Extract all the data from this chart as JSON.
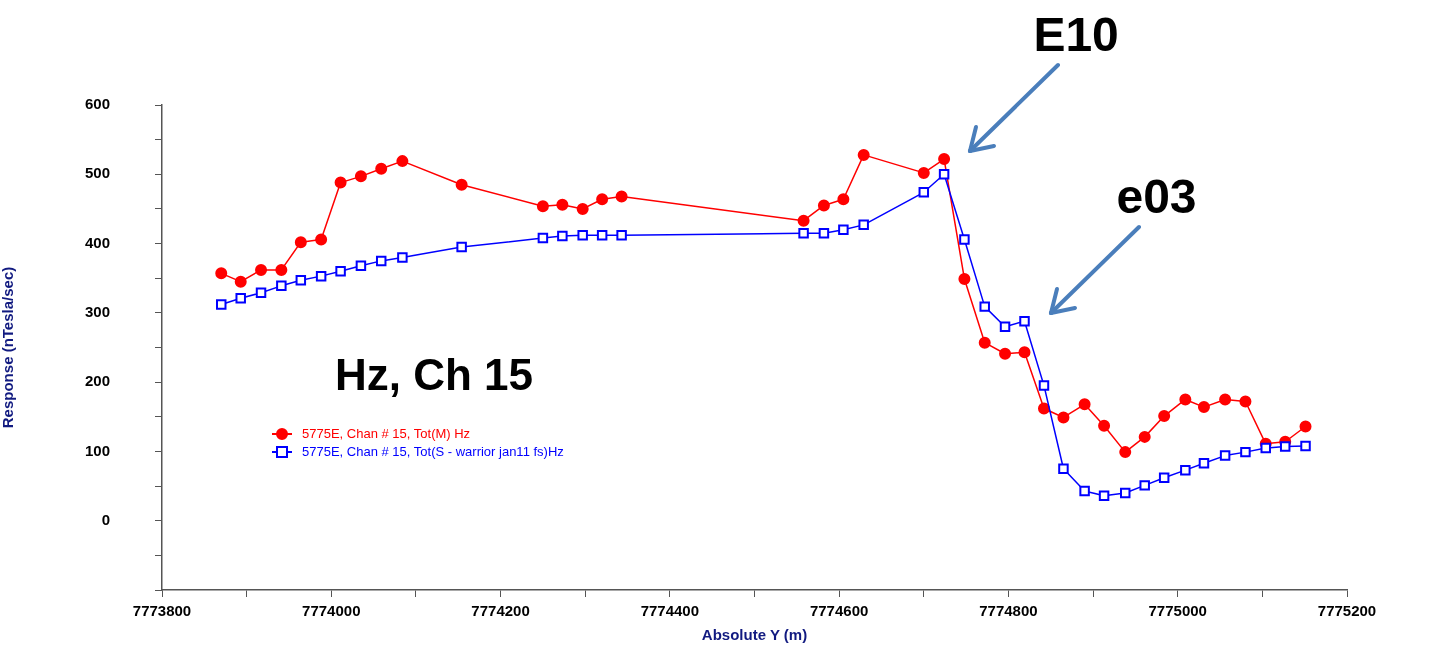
{
  "chart_data": {
    "type": "line",
    "xlabel": "Absolute Y (m)",
    "ylabel": "Response (nTesla/sec)",
    "x": [
      7773870,
      7773893,
      7773917,
      7773941,
      7773964,
      7773988,
      7774011,
      7774035,
      7774059,
      7774084,
      7774154,
      7774250,
      7774273,
      7774297,
      7774320,
      7774343,
      7774558,
      7774582,
      7774605,
      7774629,
      7774700,
      7774724,
      7774748,
      7774772,
      7774796,
      7774819,
      7774842,
      7774865,
      7774890,
      7774913,
      7774938,
      7774961,
      7774984,
      7775009,
      7775031,
      7775056,
      7775080,
      7775104,
      7775127,
      7775151
    ],
    "series": [
      {
        "name": "5775E, Chan # 15, Tot(M) Hz",
        "color": "#ff0000",
        "marker": "circle",
        "values": [
          357,
          345,
          362,
          362,
          402,
          406,
          488,
          497,
          508,
          519,
          485,
          454,
          456,
          450,
          464,
          468,
          433,
          455,
          464,
          528,
          502,
          522,
          349,
          257,
          241,
          243,
          162,
          149,
          168,
          137,
          99,
          121,
          151,
          175,
          164,
          175,
          172,
          111,
          114,
          136
        ]
      },
      {
        "name": "5775E, Chan # 15, Tot(S - warrior jan11 fs)Hz",
        "color": "#0000ff",
        "marker": "square",
        "values": [
          312,
          321,
          329,
          339,
          347,
          353,
          360,
          368,
          375,
          380,
          395,
          408,
          411,
          412,
          412,
          412,
          415,
          415,
          420,
          427,
          474,
          500,
          406,
          309,
          280,
          288,
          195,
          75,
          43,
          36,
          40,
          51,
          62,
          73,
          83,
          94,
          99,
          105,
          107,
          108
        ]
      }
    ],
    "xlim": [
      7773800,
      7775200
    ],
    "xticks": [
      7773800,
      {
        "value": 7773900,
        "label": null
      },
      7774000,
      {
        "value": 7774100,
        "label": null
      },
      7774200,
      {
        "value": 7774300,
        "label": null
      },
      7774400,
      {
        "value": 7774500,
        "label": null
      },
      7774600,
      {
        "value": 7774700,
        "label": null
      },
      7774800,
      {
        "value": 7774900,
        "label": null
      },
      7775000,
      {
        "value": 7775100,
        "label": null
      },
      7775200
    ],
    "ylim": [
      -100,
      600
    ],
    "yticks": [
      {
        "value": -100,
        "label": null
      },
      {
        "value": -50,
        "label": null
      },
      0,
      {
        "value": 50,
        "label": null
      },
      100,
      {
        "value": 150,
        "label": null
      },
      200,
      {
        "value": 250,
        "label": null
      },
      300,
      {
        "value": 350,
        "label": null
      },
      400,
      {
        "value": 450,
        "label": null
      },
      500,
      {
        "value": 550,
        "label": null
      },
      600
    ],
    "grid": false,
    "legend": "bottom left",
    "line_style": "solid",
    "annotations": [
      "Hz, Ch 15",
      {
        "text": "E10",
        "x": 7774724,
        "y": 522
      },
      {
        "text": "e03",
        "x": 7774819,
        "y": 288
      }
    ]
  }
}
